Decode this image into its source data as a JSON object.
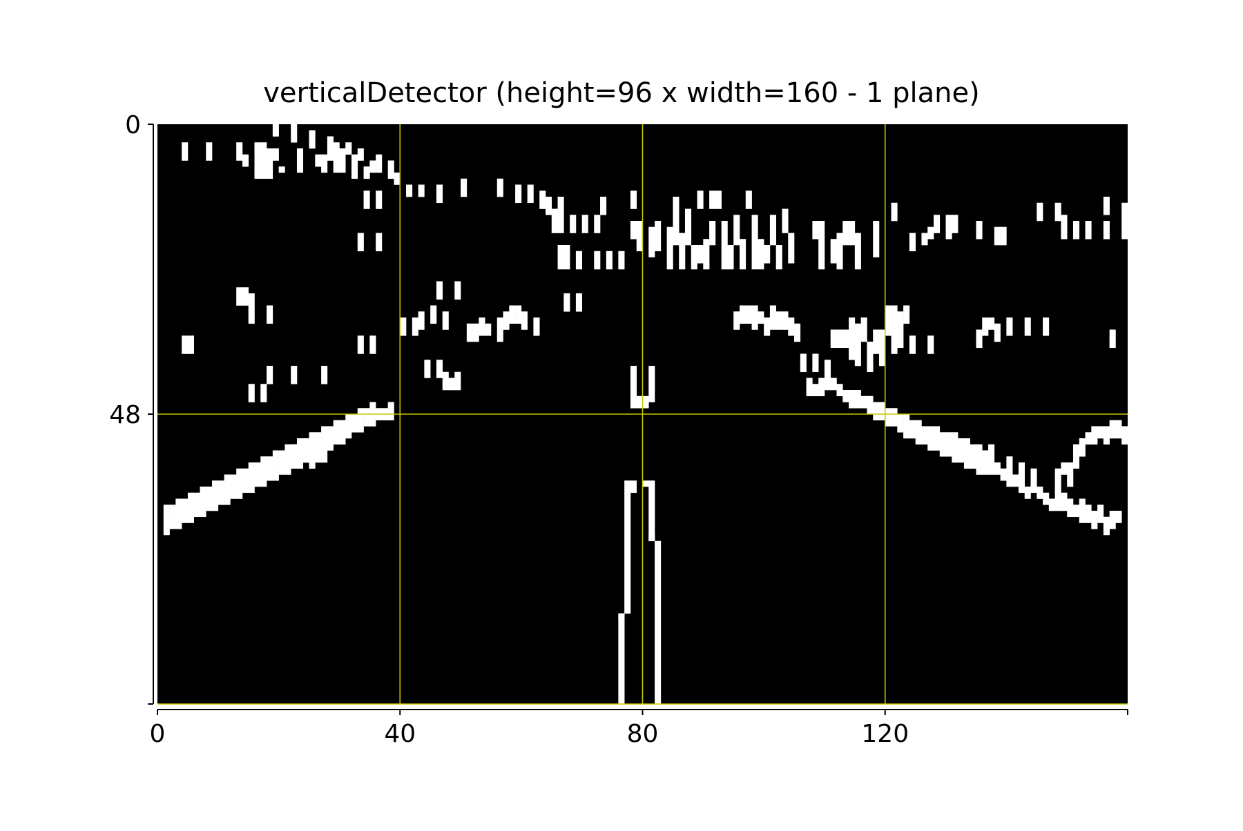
{
  "chart_data": {
    "type": "heatmap",
    "title": "verticalDetector (height=96 x width=160 - 1 plane)",
    "xlabel": "",
    "ylabel": "",
    "width": 160,
    "height": 96,
    "xlim": [
      0,
      160
    ],
    "ylim": [
      96,
      0
    ],
    "x_ticks": [
      0,
      40,
      80,
      120
    ],
    "y_ticks": [
      0,
      48
    ],
    "x_tick_labels": [
      "0",
      "40",
      "80",
      "120"
    ],
    "y_tick_labels": [
      "0",
      "48"
    ],
    "gridlines_x": [
      40,
      80,
      120
    ],
    "gridlines_y": [
      48
    ],
    "colors": {
      "background": "#000000",
      "pixel_on": "#ffffff",
      "gridline": "#c8c800",
      "axis": "#000000",
      "figure_background": "#ffffff"
    },
    "pixel_segments": [
      [
        4,
        3,
        6
      ],
      [
        8,
        3,
        6
      ],
      [
        13,
        3,
        6
      ],
      [
        14,
        5,
        7
      ],
      [
        16,
        3,
        9
      ],
      [
        18,
        4,
        9
      ],
      [
        17,
        3,
        9
      ],
      [
        19,
        0,
        2
      ],
      [
        19,
        4,
        6
      ],
      [
        20,
        7,
        8
      ],
      [
        22,
        0,
        3
      ],
      [
        23,
        4,
        8
      ],
      [
        25,
        1,
        4
      ],
      [
        26,
        5,
        7
      ],
      [
        27,
        5,
        8
      ],
      [
        28,
        2,
        6
      ],
      [
        29,
        3,
        8
      ],
      [
        30,
        4,
        8
      ],
      [
        31,
        3,
        5
      ],
      [
        32,
        5,
        9
      ],
      [
        33,
        4,
        6
      ],
      [
        34,
        7,
        9
      ],
      [
        35,
        6,
        8
      ],
      [
        36,
        5,
        8
      ],
      [
        38,
        6,
        9
      ],
      [
        39,
        8,
        10
      ],
      [
        41,
        10,
        12
      ],
      [
        43,
        10,
        12
      ],
      [
        46,
        10,
        13
      ],
      [
        50,
        9,
        12
      ],
      [
        56,
        9,
        12
      ],
      [
        59,
        10,
        13
      ],
      [
        61,
        10,
        13
      ],
      [
        63,
        11,
        14
      ],
      [
        64,
        12,
        15
      ],
      [
        65,
        14,
        18
      ],
      [
        66,
        12,
        18
      ],
      [
        68,
        15,
        18
      ],
      [
        70,
        15,
        18
      ],
      [
        72,
        15,
        18
      ],
      [
        73,
        12,
        15
      ],
      [
        78,
        11,
        14
      ],
      [
        78,
        16,
        19
      ],
      [
        33,
        18,
        21
      ],
      [
        36,
        18,
        21
      ],
      [
        34,
        11,
        14
      ],
      [
        36,
        11,
        14
      ],
      [
        66,
        20,
        24
      ],
      [
        67,
        20,
        24
      ],
      [
        69,
        21,
        24
      ],
      [
        72,
        21,
        24
      ],
      [
        74,
        21,
        24
      ],
      [
        76,
        21,
        24
      ],
      [
        79,
        16,
        21
      ],
      [
        81,
        17,
        22
      ],
      [
        82,
        16,
        21
      ],
      [
        84,
        17,
        24
      ],
      [
        85,
        12,
        20
      ],
      [
        86,
        18,
        24
      ],
      [
        87,
        14,
        20
      ],
      [
        88,
        20,
        24
      ],
      [
        89,
        11,
        14
      ],
      [
        89,
        20,
        23
      ],
      [
        90,
        19,
        24
      ],
      [
        91,
        11,
        14
      ],
      [
        91,
        16,
        20
      ],
      [
        92,
        11,
        14
      ],
      [
        93,
        16,
        24
      ],
      [
        94,
        20,
        24
      ],
      [
        95,
        15,
        20
      ],
      [
        96,
        19,
        24
      ],
      [
        97,
        11,
        14
      ],
      [
        98,
        15,
        24
      ],
      [
        99,
        19,
        24
      ],
      [
        100,
        20,
        23
      ],
      [
        101,
        15,
        20
      ],
      [
        102,
        20,
        24
      ],
      [
        103,
        14,
        18
      ],
      [
        104,
        18,
        23
      ],
      [
        108,
        16,
        19
      ],
      [
        109,
        16,
        24
      ],
      [
        111,
        19,
        23
      ],
      [
        112,
        18,
        24
      ],
      [
        113,
        16,
        20
      ],
      [
        114,
        16,
        20
      ],
      [
        115,
        18,
        24
      ],
      [
        118,
        16,
        22
      ],
      [
        121,
        13,
        16
      ],
      [
        124,
        18,
        21
      ],
      [
        126,
        18,
        20
      ],
      [
        127,
        17,
        19
      ],
      [
        128,
        15,
        18
      ],
      [
        130,
        15,
        19
      ],
      [
        131,
        15,
        18
      ],
      [
        135,
        16,
        19
      ],
      [
        138,
        17,
        20
      ],
      [
        139,
        17,
        20
      ],
      [
        145,
        13,
        16
      ],
      [
        148,
        13,
        16
      ],
      [
        149,
        15,
        19
      ],
      [
        151,
        16,
        19
      ],
      [
        153,
        16,
        19
      ],
      [
        156,
        12,
        15
      ],
      [
        156,
        16,
        19
      ],
      [
        159,
        13,
        19
      ],
      [
        13,
        27,
        30
      ],
      [
        14,
        27,
        30
      ],
      [
        15,
        28,
        33
      ],
      [
        18,
        30,
        33
      ],
      [
        4,
        35,
        38
      ],
      [
        5,
        35,
        38
      ],
      [
        33,
        35,
        38
      ],
      [
        35,
        35,
        38
      ],
      [
        18,
        40,
        43
      ],
      [
        22,
        40,
        43
      ],
      [
        27,
        40,
        43
      ],
      [
        15,
        43,
        46
      ],
      [
        17,
        43,
        46
      ],
      [
        40,
        32,
        35
      ],
      [
        42,
        32,
        35
      ],
      [
        43,
        31,
        34
      ],
      [
        45,
        30,
        33
      ],
      [
        47,
        31,
        34
      ],
      [
        46,
        26,
        29
      ],
      [
        49,
        26,
        29
      ],
      [
        51,
        33,
        36
      ],
      [
        52,
        33,
        36
      ],
      [
        53,
        32,
        35
      ],
      [
        54,
        33,
        35
      ],
      [
        56,
        32,
        36
      ],
      [
        57,
        31,
        34
      ],
      [
        58,
        30,
        33
      ],
      [
        59,
        30,
        33
      ],
      [
        60,
        31,
        34
      ],
      [
        62,
        32,
        35
      ],
      [
        67,
        28,
        31
      ],
      [
        69,
        28,
        31
      ],
      [
        44,
        39,
        42
      ],
      [
        46,
        39,
        42
      ],
      [
        47,
        41,
        44
      ],
      [
        48,
        42,
        44
      ],
      [
        49,
        41,
        44
      ],
      [
        78,
        40,
        47
      ],
      [
        79,
        45,
        47
      ],
      [
        80,
        45,
        47
      ],
      [
        81,
        40,
        46
      ],
      [
        95,
        31,
        34
      ],
      [
        96,
        30,
        33
      ],
      [
        97,
        30,
        33
      ],
      [
        98,
        30,
        34
      ],
      [
        99,
        31,
        33
      ],
      [
        100,
        32,
        35
      ],
      [
        101,
        30,
        34
      ],
      [
        102,
        31,
        34
      ],
      [
        103,
        31,
        34
      ],
      [
        104,
        32,
        35
      ],
      [
        105,
        33,
        36
      ],
      [
        106,
        38,
        41
      ],
      [
        108,
        38,
        41
      ],
      [
        110,
        39,
        43
      ],
      [
        111,
        34,
        37
      ],
      [
        112,
        34,
        37
      ],
      [
        113,
        34,
        37
      ],
      [
        114,
        32,
        39
      ],
      [
        115,
        33,
        40
      ],
      [
        116,
        32,
        36
      ],
      [
        117,
        36,
        41
      ],
      [
        118,
        34,
        38
      ],
      [
        119,
        34,
        40
      ],
      [
        120,
        30,
        35
      ],
      [
        121,
        30,
        38
      ],
      [
        122,
        31,
        37
      ],
      [
        123,
        30,
        33
      ],
      [
        124,
        35,
        38
      ],
      [
        127,
        35,
        38
      ],
      [
        135,
        34,
        37
      ],
      [
        136,
        32,
        35
      ],
      [
        137,
        32,
        34
      ],
      [
        138,
        33,
        36
      ],
      [
        140,
        32,
        35
      ],
      [
        143,
        32,
        35
      ],
      [
        146,
        32,
        35
      ],
      [
        157,
        34,
        37
      ],
      [
        107,
        42,
        45
      ],
      [
        108,
        43,
        45
      ],
      [
        109,
        42,
        45
      ],
      [
        110,
        41,
        44
      ],
      [
        111,
        42,
        44
      ],
      [
        112,
        43,
        45
      ],
      [
        113,
        44,
        46
      ],
      [
        114,
        44,
        47
      ],
      [
        115,
        44,
        47
      ],
      [
        116,
        45,
        47
      ],
      [
        117,
        45,
        48
      ],
      [
        118,
        46,
        49
      ],
      [
        119,
        46,
        49
      ],
      [
        120,
        47,
        50
      ],
      [
        121,
        47,
        50
      ],
      [
        122,
        48,
        51
      ],
      [
        123,
        48,
        52
      ],
      [
        124,
        49,
        52
      ],
      [
        125,
        49,
        53
      ],
      [
        126,
        50,
        53
      ],
      [
        127,
        50,
        54
      ],
      [
        128,
        50,
        54
      ],
      [
        129,
        51,
        55
      ],
      [
        130,
        51,
        55
      ],
      [
        131,
        51,
        56
      ],
      [
        132,
        52,
        56
      ],
      [
        133,
        52,
        57
      ],
      [
        134,
        53,
        57
      ],
      [
        135,
        53,
        58
      ],
      [
        136,
        54,
        58
      ],
      [
        137,
        53,
        58
      ],
      [
        138,
        56,
        58
      ],
      [
        139,
        57,
        59
      ],
      [
        140,
        57,
        60
      ],
      [
        141,
        58,
        60
      ],
      [
        142,
        59,
        61
      ],
      [
        143,
        60,
        62
      ],
      [
        144,
        59,
        61
      ],
      [
        145,
        60,
        62
      ],
      [
        146,
        61,
        63
      ],
      [
        147,
        62,
        64
      ],
      [
        148,
        60,
        64
      ],
      [
        149,
        61,
        64
      ],
      [
        150,
        62,
        65
      ],
      [
        151,
        63,
        65
      ],
      [
        152,
        62,
        66
      ],
      [
        153,
        63,
        66
      ],
      [
        154,
        64,
        67
      ],
      [
        155,
        63,
        66
      ],
      [
        156,
        65,
        68
      ],
      [
        157,
        64,
        67
      ],
      [
        158,
        64,
        66
      ],
      [
        140,
        55,
        58
      ],
      [
        142,
        56,
        59
      ],
      [
        144,
        57,
        59
      ],
      [
        148,
        57,
        60
      ],
      [
        149,
        56,
        58
      ],
      [
        150,
        56,
        60
      ],
      [
        151,
        53,
        57
      ],
      [
        152,
        52,
        55
      ],
      [
        153,
        51,
        53
      ],
      [
        154,
        50,
        53
      ],
      [
        155,
        50,
        52
      ],
      [
        156,
        50,
        53
      ],
      [
        157,
        49,
        52
      ],
      [
        158,
        49,
        52
      ],
      [
        159,
        50,
        53
      ],
      [
        1,
        63,
        68
      ],
      [
        2,
        63,
        67
      ],
      [
        3,
        62,
        67
      ],
      [
        4,
        62,
        66
      ],
      [
        5,
        61,
        66
      ],
      [
        6,
        61,
        65
      ],
      [
        7,
        60,
        65
      ],
      [
        8,
        60,
        64
      ],
      [
        9,
        59,
        64
      ],
      [
        10,
        59,
        63
      ],
      [
        11,
        58,
        63
      ],
      [
        12,
        58,
        62
      ],
      [
        13,
        57,
        62
      ],
      [
        14,
        57,
        61
      ],
      [
        15,
        56,
        61
      ],
      [
        16,
        56,
        60
      ],
      [
        17,
        55,
        60
      ],
      [
        18,
        55,
        59
      ],
      [
        19,
        54,
        59
      ],
      [
        20,
        54,
        58
      ],
      [
        21,
        53,
        58
      ],
      [
        22,
        53,
        57
      ],
      [
        23,
        52,
        57
      ],
      [
        24,
        52,
        56
      ],
      [
        25,
        51,
        56
      ],
      [
        26,
        51,
        55
      ],
      [
        27,
        50,
        54
      ],
      [
        28,
        50,
        54
      ],
      [
        29,
        49,
        53
      ],
      [
        30,
        49,
        53
      ],
      [
        31,
        48,
        52
      ],
      [
        32,
        48,
        51
      ],
      [
        33,
        47,
        51
      ],
      [
        34,
        47,
        50
      ],
      [
        35,
        46,
        50
      ],
      [
        36,
        47,
        49
      ],
      [
        37,
        47,
        49
      ],
      [
        38,
        46,
        49
      ],
      [
        22,
        53,
        55
      ],
      [
        23,
        53,
        56
      ],
      [
        24,
        54,
        56
      ],
      [
        25,
        53,
        57
      ],
      [
        26,
        53,
        56
      ],
      [
        27,
        53,
        56
      ],
      [
        76,
        81,
        96
      ],
      [
        77,
        60,
        81
      ],
      [
        78,
        59,
        61
      ],
      [
        81,
        59,
        69
      ],
      [
        82,
        69,
        96
      ],
      [
        76,
        81,
        82
      ],
      [
        77,
        59,
        60
      ],
      [
        80,
        59,
        60
      ],
      [
        81,
        68,
        69
      ]
    ]
  }
}
